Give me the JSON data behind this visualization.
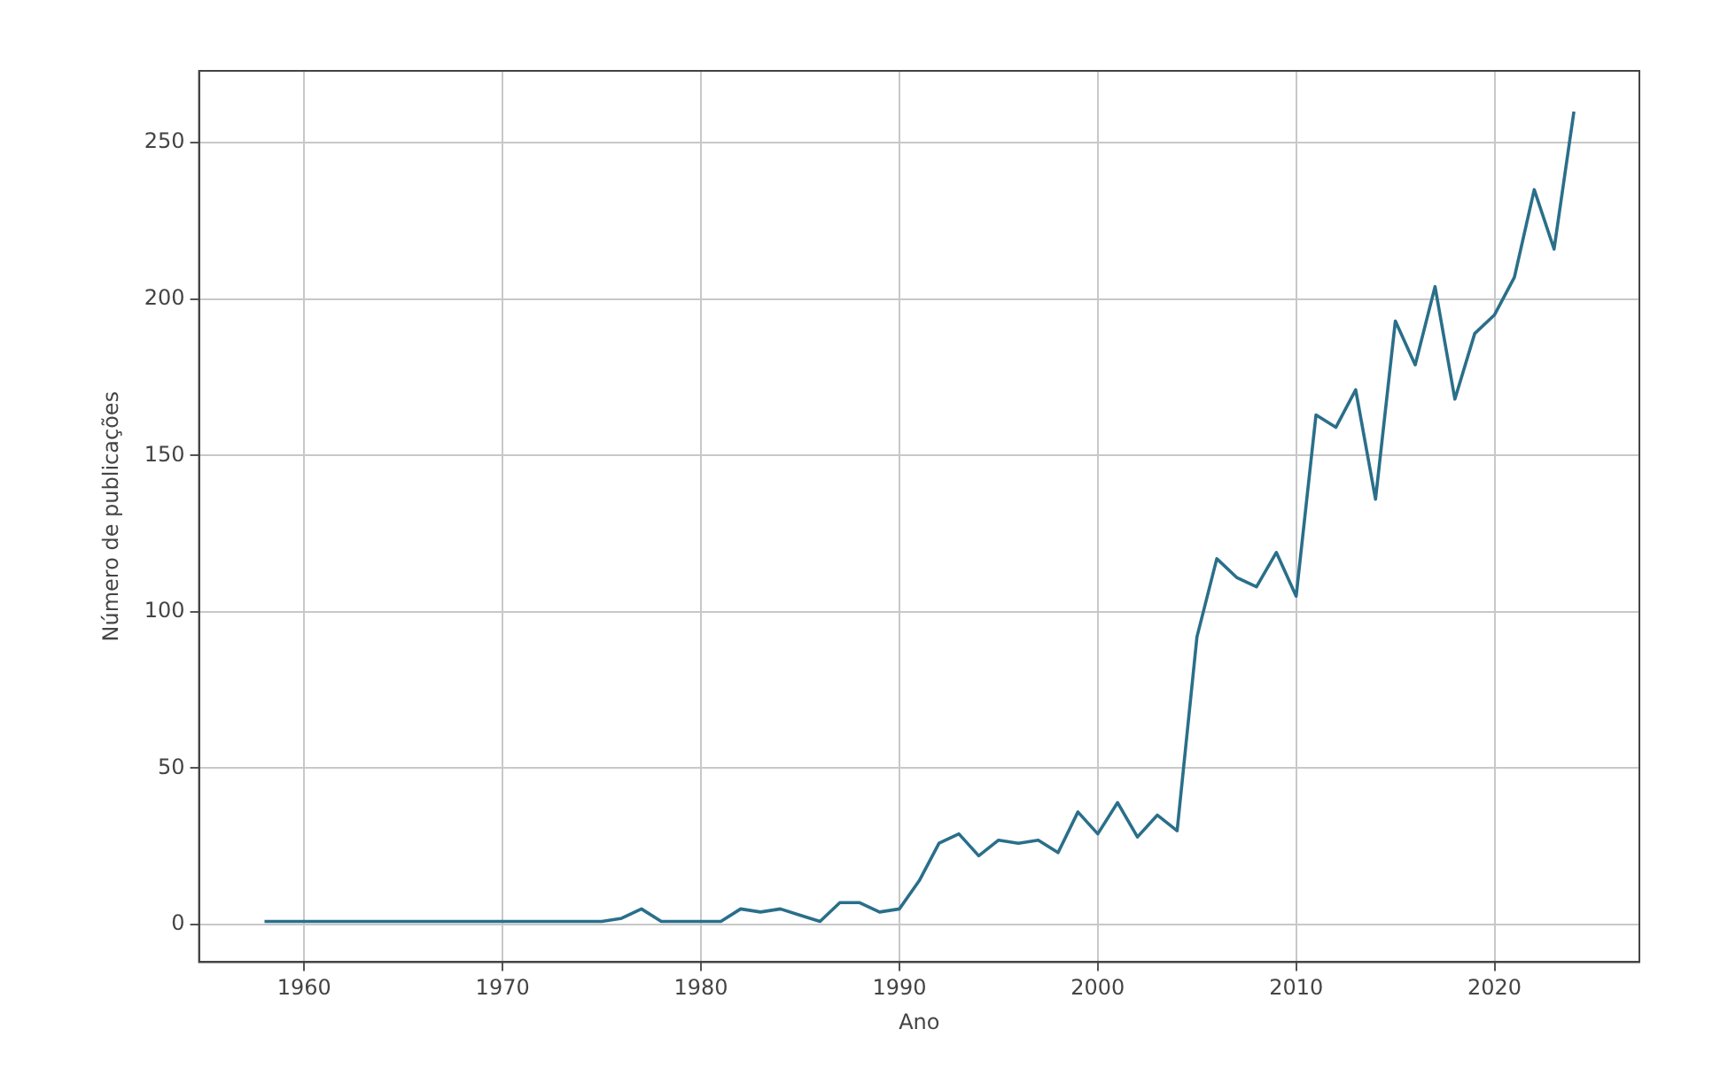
{
  "chart_data": {
    "type": "line",
    "xlabel": "Ano",
    "ylabel": "Número de publicações",
    "x": [
      1958,
      1959,
      1960,
      1961,
      1962,
      1963,
      1964,
      1965,
      1966,
      1967,
      1968,
      1969,
      1970,
      1971,
      1972,
      1973,
      1974,
      1975,
      1976,
      1977,
      1978,
      1979,
      1980,
      1981,
      1982,
      1983,
      1984,
      1985,
      1986,
      1987,
      1988,
      1989,
      1990,
      1991,
      1992,
      1993,
      1994,
      1995,
      1996,
      1997,
      1998,
      1999,
      2000,
      2001,
      2002,
      2003,
      2004,
      2005,
      2006,
      2007,
      2008,
      2009,
      2010,
      2011,
      2012,
      2013,
      2014,
      2015,
      2016,
      2017,
      2018,
      2019,
      2020,
      2021,
      2022,
      2023,
      2024
    ],
    "series": [
      {
        "color": "#2a6f8a",
        "values": [
          1,
          1,
          1,
          1,
          1,
          1,
          1,
          1,
          1,
          1,
          1,
          1,
          1,
          1,
          1,
          1,
          1,
          1,
          2,
          5,
          1,
          1,
          1,
          1,
          5,
          4,
          5,
          3,
          1,
          7,
          7,
          4,
          5,
          14,
          26,
          29,
          22,
          27,
          26,
          27,
          23,
          36,
          29,
          39,
          28,
          35,
          30,
          92,
          117,
          111,
          108,
          119,
          105,
          163,
          159,
          171,
          136,
          193,
          179,
          204,
          168,
          189,
          195,
          207,
          235,
          216,
          260
        ]
      }
    ],
    "xlim": [
      1954.7,
      2027.3
    ],
    "xticks": [
      1960,
      1970,
      1980,
      1990,
      2000,
      2010,
      2020
    ],
    "ylim": [
      -12,
      273
    ],
    "yticks": [
      0,
      50,
      100,
      150,
      200,
      250
    ],
    "grid": true,
    "legend": false,
    "marker": "none",
    "line_style": "solid"
  }
}
